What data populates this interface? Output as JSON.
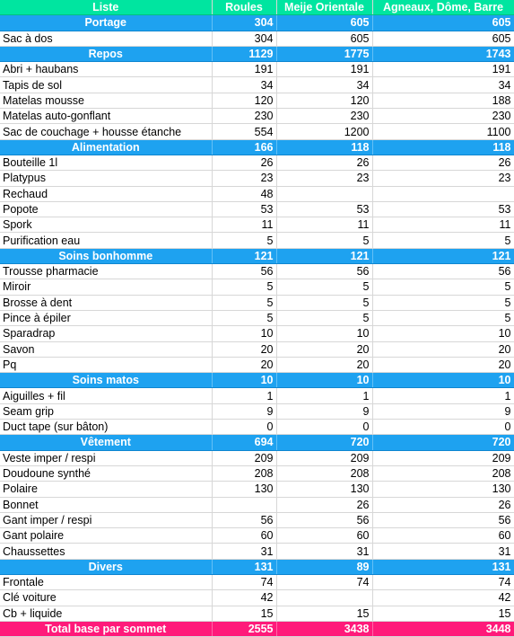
{
  "columns": [
    "Liste",
    "Roules",
    "Meije Orientale",
    "Agneaux, Dôme, Barre"
  ],
  "sections": [
    {
      "name": "Portage",
      "totals": [
        "304",
        "605",
        "605"
      ],
      "items": [
        {
          "name": "Sac à dos",
          "values": [
            "304",
            "605",
            "605"
          ]
        }
      ]
    },
    {
      "name": "Repos",
      "totals": [
        "1129",
        "1775",
        "1743"
      ],
      "items": [
        {
          "name": "Abri + haubans",
          "values": [
            "191",
            "191",
            "191"
          ]
        },
        {
          "name": "Tapis de sol",
          "values": [
            "34",
            "34",
            "34"
          ]
        },
        {
          "name": "Matelas mousse",
          "values": [
            "120",
            "120",
            "188"
          ]
        },
        {
          "name": "Matelas auto-gonflant",
          "values": [
            "230",
            "230",
            "230"
          ]
        },
        {
          "name": "Sac de couchage + housse étanche",
          "values": [
            "554",
            "1200",
            "1100"
          ]
        }
      ]
    },
    {
      "name": "Alimentation",
      "totals": [
        "166",
        "118",
        "118"
      ],
      "items": [
        {
          "name": "Bouteille 1l",
          "values": [
            "26",
            "26",
            "26"
          ]
        },
        {
          "name": "Platypus",
          "values": [
            "23",
            "23",
            "23"
          ]
        },
        {
          "name": "Rechaud",
          "values": [
            "48",
            "",
            ""
          ]
        },
        {
          "name": "Popote",
          "values": [
            "53",
            "53",
            "53"
          ]
        },
        {
          "name": "Spork",
          "values": [
            "11",
            "11",
            "11"
          ]
        },
        {
          "name": "Purification eau",
          "values": [
            "5",
            "5",
            "5"
          ]
        }
      ]
    },
    {
      "name": "Soins bonhomme",
      "totals": [
        "121",
        "121",
        "121"
      ],
      "items": [
        {
          "name": "Trousse pharmacie",
          "values": [
            "56",
            "56",
            "56"
          ]
        },
        {
          "name": "Miroir",
          "values": [
            "5",
            "5",
            "5"
          ]
        },
        {
          "name": "Brosse à dent",
          "values": [
            "5",
            "5",
            "5"
          ]
        },
        {
          "name": "Pince à épiler",
          "values": [
            "5",
            "5",
            "5"
          ]
        },
        {
          "name": "Sparadrap",
          "values": [
            "10",
            "10",
            "10"
          ]
        },
        {
          "name": "Savon",
          "values": [
            "20",
            "20",
            "20"
          ]
        },
        {
          "name": "Pq",
          "values": [
            "20",
            "20",
            "20"
          ]
        }
      ]
    },
    {
      "name": "Soins matos",
      "totals": [
        "10",
        "10",
        "10"
      ],
      "items": [
        {
          "name": "Aiguilles + fil",
          "values": [
            "1",
            "1",
            "1"
          ]
        },
        {
          "name": "Seam grip",
          "values": [
            "9",
            "9",
            "9"
          ]
        },
        {
          "name": "Duct tape (sur bâton)",
          "values": [
            "0",
            "0",
            "0"
          ]
        }
      ]
    },
    {
      "name": "Vêtement",
      "totals": [
        "694",
        "720",
        "720"
      ],
      "items": [
        {
          "name": "Veste imper / respi",
          "values": [
            "209",
            "209",
            "209"
          ]
        },
        {
          "name": "Doudoune synthé",
          "values": [
            "208",
            "208",
            "208"
          ]
        },
        {
          "name": "Polaire",
          "values": [
            "130",
            "130",
            "130"
          ]
        },
        {
          "name": "Bonnet",
          "values": [
            "",
            "26",
            "26"
          ]
        },
        {
          "name": "Gant imper / respi",
          "values": [
            "56",
            "56",
            "56"
          ]
        },
        {
          "name": "Gant polaire",
          "values": [
            "60",
            "60",
            "60"
          ]
        },
        {
          "name": "Chaussettes",
          "values": [
            "31",
            "31",
            "31"
          ]
        }
      ]
    },
    {
      "name": "Divers",
      "totals": [
        "131",
        "89",
        "131"
      ],
      "items": [
        {
          "name": "Frontale",
          "values": [
            "74",
            "74",
            "74"
          ]
        },
        {
          "name": "Clé voiture",
          "values": [
            "42",
            "",
            "42"
          ]
        },
        {
          "name": "Cb + liquide",
          "values": [
            "15",
            "15",
            "15"
          ]
        }
      ]
    }
  ],
  "total": {
    "label": "Total base par sommet",
    "values": [
      "2555",
      "3438",
      "3448"
    ]
  },
  "colors": {
    "header_bg": "#00e5a0",
    "section_bg": "#1ea2f0",
    "total_bg": "#ff1a7a",
    "grid_line": "#d7d7d7"
  }
}
